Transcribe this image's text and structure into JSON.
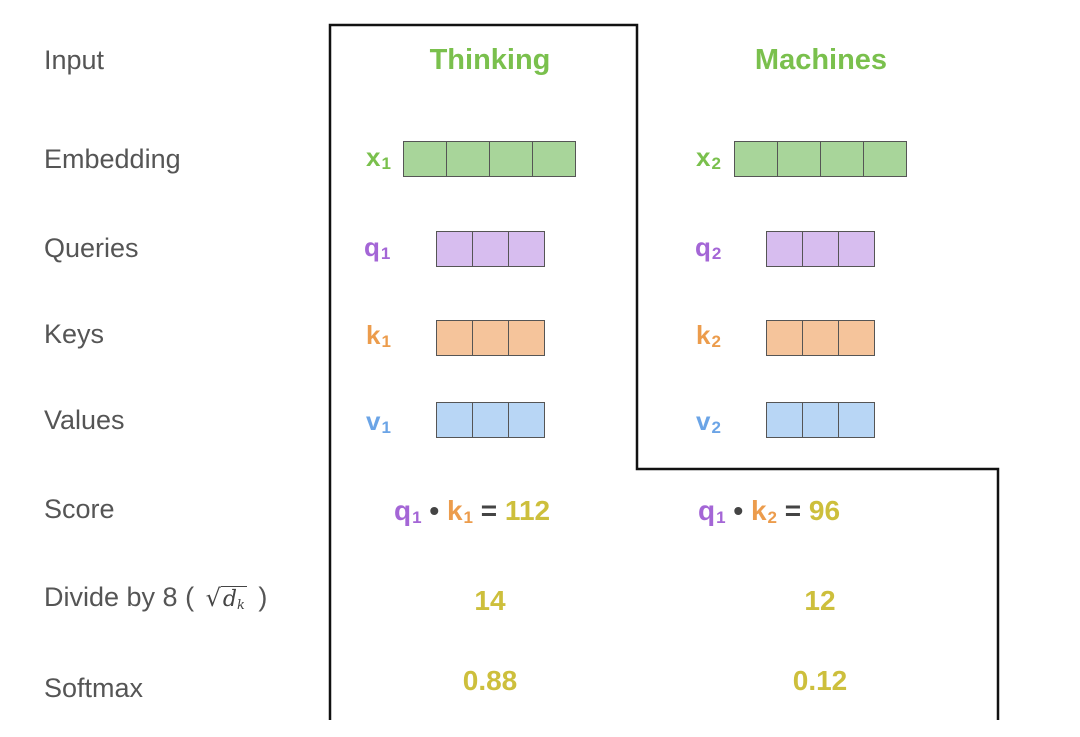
{
  "row_labels": {
    "input": "Input",
    "embedding": "Embedding",
    "queries": "Queries",
    "keys": "Keys",
    "values": "Values",
    "score": "Score",
    "divide": "Divide by 8 (",
    "divide_close": ")",
    "softmax": "Softmax"
  },
  "sqrt_formula": {
    "symbol": "√",
    "var": "d",
    "subscript": "k"
  },
  "words": {
    "w1": "Thinking",
    "w2": "Machines"
  },
  "vectors": {
    "x1": {
      "base": "x",
      "sub": "1"
    },
    "x2": {
      "base": "x",
      "sub": "2"
    },
    "q1": {
      "base": "q",
      "sub": "1"
    },
    "q2": {
      "base": "q",
      "sub": "2"
    },
    "k1": {
      "base": "k",
      "sub": "1"
    },
    "k2": {
      "base": "k",
      "sub": "2"
    },
    "v1": {
      "base": "v",
      "sub": "1"
    },
    "v2": {
      "base": "v",
      "sub": "2"
    }
  },
  "scores": {
    "s1": {
      "q": "q",
      "q_sub": "1",
      "dot": "•",
      "k": "k",
      "k_sub": "1",
      "eq": "=",
      "value": "112"
    },
    "s2": {
      "q": "q",
      "q_sub": "1",
      "dot": "•",
      "k": "k",
      "k_sub": "2",
      "eq": "=",
      "value": "96"
    }
  },
  "divided": {
    "d1": "14",
    "d2": "12"
  },
  "softmax": {
    "s1": "0.88",
    "s2": "0.12"
  },
  "colors": {
    "green": "#7ac04d",
    "purple": "#a466d6",
    "orange": "#ec9c4c",
    "blue": "#6ba4e6",
    "yellow": "#cdbf3c",
    "label_gray": "#555555"
  }
}
